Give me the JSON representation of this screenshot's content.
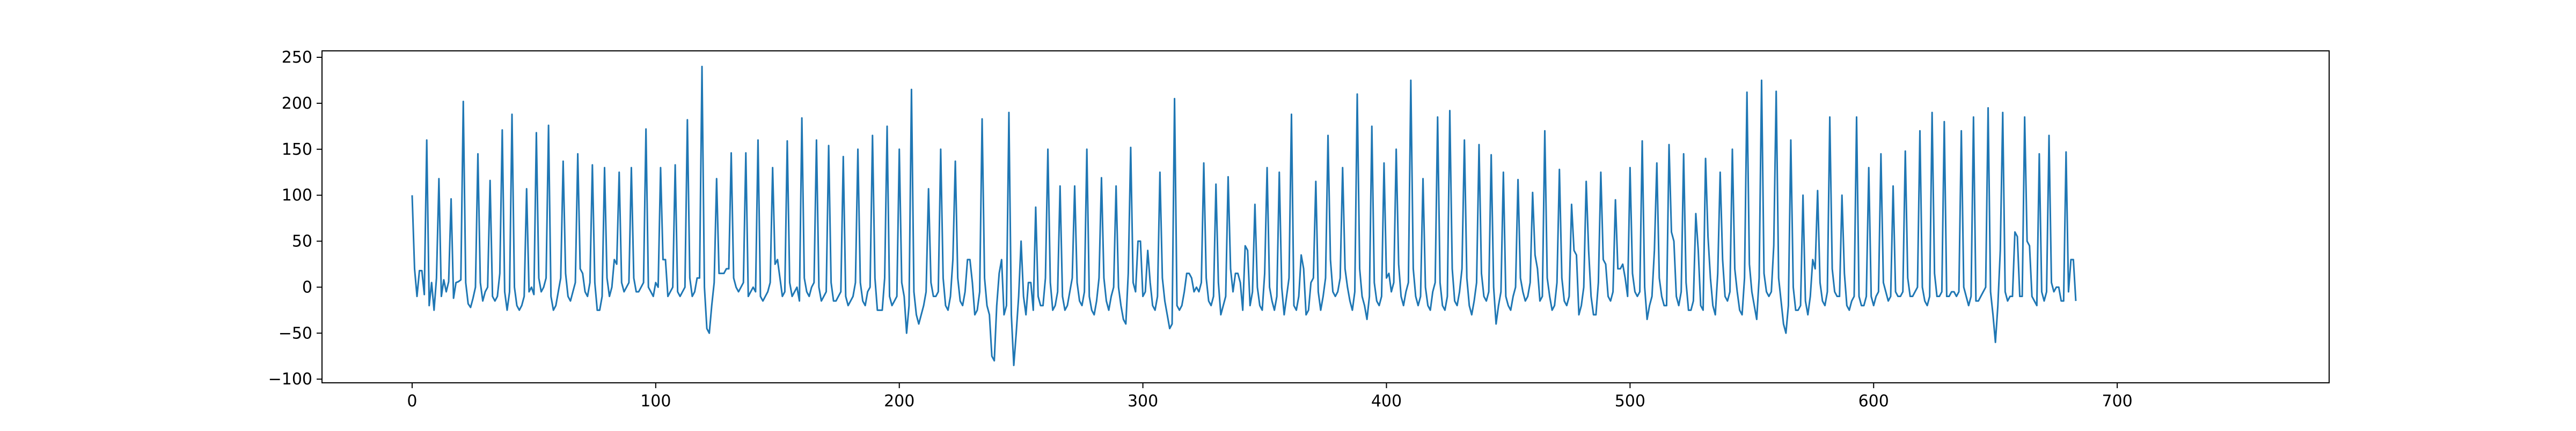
{
  "chart_data": {
    "type": "line",
    "title": "",
    "xlabel": "",
    "ylabel": "",
    "xlim": [
      -37,
      787
    ],
    "ylim": [
      -104,
      257
    ],
    "xticks": [
      0,
      100,
      200,
      300,
      400,
      500,
      600,
      700
    ],
    "yticks": [
      -100,
      -50,
      0,
      50,
      100,
      150,
      200,
      250
    ],
    "grid": false,
    "legend": null,
    "series": [
      {
        "color": "#1f77b4",
        "x_start": 0,
        "x_step": 1,
        "values": [
          100,
          20,
          -10,
          18,
          18,
          -8,
          160,
          -20,
          5,
          -25,
          10,
          118,
          -10,
          8,
          -5,
          6,
          96,
          -12,
          5,
          6,
          8,
          202,
          5,
          -18,
          -22,
          -12,
          0,
          145,
          5,
          -15,
          -5,
          0,
          116,
          -10,
          -15,
          -10,
          15,
          171,
          -5,
          -25,
          -5,
          188,
          0,
          -20,
          -25,
          -20,
          -10,
          107,
          -5,
          0,
          -8,
          168,
          10,
          -5,
          0,
          10,
          176,
          -10,
          -25,
          -20,
          -5,
          10,
          137,
          15,
          -10,
          -15,
          -5,
          5,
          145,
          20,
          15,
          -5,
          -10,
          5,
          133,
          5,
          -25,
          -25,
          -10,
          130,
          10,
          -10,
          0,
          30,
          25,
          125,
          5,
          -5,
          0,
          5,
          130,
          10,
          -5,
          -5,
          0,
          5,
          172,
          0,
          -5,
          -10,
          5,
          0,
          130,
          30,
          30,
          -10,
          -5,
          0,
          133,
          -5,
          -10,
          -5,
          0,
          182,
          10,
          -10,
          -5,
          10,
          10,
          240,
          0,
          -45,
          -50,
          -20,
          5,
          118,
          15,
          15,
          15,
          20,
          20,
          146,
          10,
          0,
          -5,
          0,
          5,
          146,
          -10,
          -5,
          0,
          -5,
          160,
          -10,
          -15,
          -10,
          -5,
          5,
          130,
          25,
          30,
          10,
          -10,
          -5,
          159,
          5,
          -10,
          -5,
          0,
          -15,
          184,
          10,
          -5,
          -10,
          0,
          5,
          160,
          0,
          -15,
          -10,
          -5,
          154,
          5,
          -15,
          -15,
          -10,
          -5,
          142,
          -10,
          -20,
          -15,
          -10,
          5,
          150,
          5,
          -15,
          -20,
          -5,
          0,
          165,
          10,
          -25,
          -25,
          -25,
          10,
          175,
          -10,
          -20,
          -15,
          -10,
          150,
          5,
          -10,
          -50,
          -20,
          215,
          -5,
          -30,
          -40,
          -30,
          -20,
          -5,
          107,
          5,
          -10,
          -10,
          -5,
          150,
          10,
          -20,
          -25,
          -10,
          30,
          137,
          10,
          -15,
          -20,
          -5,
          30,
          30,
          5,
          -30,
          -25,
          -5,
          183,
          10,
          -20,
          -30,
          -75,
          -80,
          -20,
          15,
          30,
          -30,
          -20,
          190,
          -30,
          -85,
          -50,
          -10,
          50,
          -10,
          -30,
          5,
          5,
          -25,
          87,
          -10,
          -20,
          -20,
          10,
          150,
          5,
          -25,
          -20,
          -5,
          110,
          -10,
          -25,
          -20,
          -5,
          10,
          110,
          5,
          -15,
          -20,
          -5,
          150,
          -10,
          -25,
          -30,
          -15,
          10,
          119,
          10,
          -15,
          -25,
          -10,
          0,
          110,
          0,
          -20,
          -35,
          -40,
          15,
          152,
          5,
          -5,
          50,
          50,
          -10,
          -5,
          40,
          5,
          -20,
          -25,
          -10,
          125,
          10,
          -15,
          -30,
          -45,
          -40,
          205,
          -20,
          -25,
          -20,
          -5,
          15,
          15,
          10,
          -5,
          0,
          -5,
          5,
          135,
          10,
          -15,
          -20,
          -10,
          112,
          5,
          -30,
          -20,
          -10,
          120,
          20,
          -5,
          15,
          15,
          5,
          -25,
          45,
          40,
          -20,
          -5,
          90,
          0,
          -20,
          -25,
          15,
          130,
          0,
          -15,
          -25,
          -10,
          125,
          0,
          -30,
          -10,
          10,
          188,
          -20,
          -25,
          -10,
          35,
          20,
          -30,
          -25,
          5,
          10,
          115,
          -5,
          -25,
          -10,
          10,
          165,
          30,
          -5,
          -10,
          -5,
          10,
          130,
          20,
          0,
          -15,
          -25,
          -5,
          210,
          20,
          -10,
          -20,
          -35,
          -10,
          175,
          5,
          -15,
          -20,
          -10,
          135,
          10,
          15,
          -5,
          5,
          150,
          25,
          -10,
          -20,
          -5,
          5,
          225,
          20,
          -10,
          -20,
          -10,
          118,
          0,
          -20,
          -25,
          -5,
          5,
          185,
          5,
          -20,
          -25,
          -10,
          192,
          20,
          -15,
          -20,
          -5,
          20,
          160,
          10,
          -20,
          -30,
          -15,
          5,
          155,
          15,
          -10,
          -15,
          -5,
          144,
          0,
          -40,
          -20,
          -5,
          125,
          -10,
          -20,
          -25,
          -10,
          0,
          117,
          10,
          -5,
          -15,
          -10,
          5,
          103,
          35,
          20,
          -15,
          -10,
          170,
          10,
          -10,
          -25,
          -20,
          5,
          128,
          10,
          -15,
          -20,
          -10,
          90,
          40,
          35,
          -30,
          -20,
          0,
          115,
          40,
          -10,
          -30,
          -30,
          5,
          125,
          30,
          25,
          -10,
          -15,
          -5,
          95,
          20,
          20,
          25,
          10,
          -10,
          130,
          15,
          -5,
          -10,
          -5,
          159,
          0,
          -35,
          -20,
          -10,
          40,
          135,
          10,
          -10,
          -20,
          -20,
          155,
          60,
          50,
          -10,
          -20,
          -5,
          145,
          5,
          -25,
          -25,
          -15,
          80,
          40,
          -20,
          -25,
          140,
          55,
          10,
          -20,
          -30,
          15,
          125,
          30,
          -10,
          -15,
          -5,
          150,
          20,
          -5,
          -25,
          -30,
          10,
          212,
          25,
          -5,
          -20,
          -35,
          10,
          225,
          15,
          -5,
          -10,
          -5,
          45,
          213,
          10,
          -15,
          -40,
          -50,
          -20,
          160,
          0,
          -25,
          -25,
          -20,
          100,
          -15,
          -30,
          -10,
          30,
          20,
          105,
          5,
          -15,
          -20,
          -5,
          185,
          20,
          -5,
          -10,
          -10,
          100,
          15,
          -20,
          -25,
          -15,
          -10,
          185,
          -10,
          -20,
          -20,
          -10,
          130,
          -10,
          -20,
          -10,
          -5,
          145,
          5,
          -5,
          -15,
          -10,
          110,
          -5,
          -10,
          -10,
          -5,
          148,
          10,
          -10,
          -10,
          -5,
          0,
          170,
          0,
          -15,
          -20,
          -10,
          190,
          15,
          -10,
          -10,
          -5,
          180,
          -10,
          -10,
          -5,
          -5,
          -10,
          -5,
          170,
          0,
          -10,
          -20,
          -10,
          185,
          -15,
          -15,
          -10,
          -5,
          0,
          195,
          -5,
          -30,
          -60,
          -20,
          40,
          190,
          -5,
          -15,
          -10,
          -10,
          60,
          55,
          -10,
          -10,
          185,
          50,
          45,
          -10,
          -15,
          -20,
          145,
          -5,
          -15,
          -5,
          165,
          5,
          -5,
          0,
          0,
          -15,
          -15,
          147,
          -5,
          30,
          30,
          -15
        ]
      }
    ]
  }
}
